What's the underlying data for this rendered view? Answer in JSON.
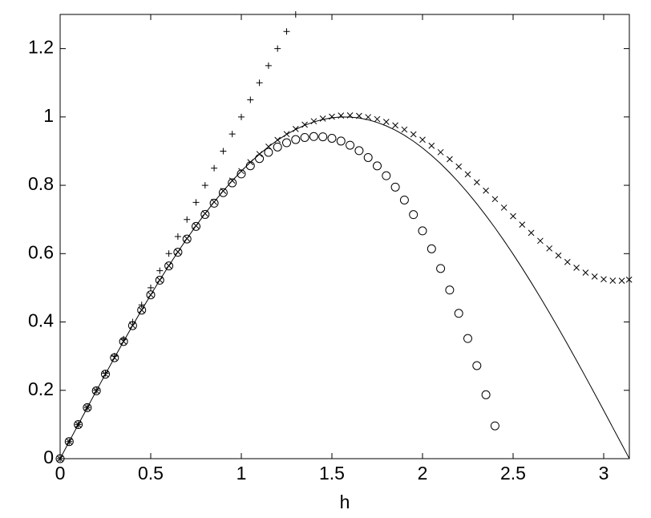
{
  "chart_data": {
    "type": "line",
    "xlabel": "h",
    "x": [
      0,
      0.05,
      0.1,
      0.15,
      0.2,
      0.25,
      0.3,
      0.35,
      0.4,
      0.45,
      0.5,
      0.55,
      0.6,
      0.65,
      0.7,
      0.75,
      0.8,
      0.85,
      0.9,
      0.95,
      1.0,
      1.05,
      1.1,
      1.15,
      1.2,
      1.25,
      1.3,
      1.35,
      1.4,
      1.45,
      1.5,
      1.55,
      1.6,
      1.65,
      1.7,
      1.75,
      1.8,
      1.85,
      1.9,
      1.95,
      2.0,
      2.05,
      2.1,
      2.15,
      2.2,
      2.25,
      2.3,
      2.35,
      2.4,
      2.45,
      2.5,
      2.55,
      2.6,
      2.65,
      2.7,
      2.75,
      2.8,
      2.85,
      2.9,
      2.95,
      3.0,
      3.05,
      3.1,
      3.14
    ],
    "series": [
      {
        "marker": "line",
        "color": "#000000",
        "values": [
          0,
          0.05,
          0.0998,
          0.1494,
          0.1987,
          0.2474,
          0.2955,
          0.3429,
          0.3894,
          0.435,
          0.4794,
          0.5227,
          0.5646,
          0.6052,
          0.6442,
          0.6816,
          0.7174,
          0.7513,
          0.7833,
          0.8134,
          0.8415,
          0.8674,
          0.8912,
          0.9128,
          0.932,
          0.949,
          0.9636,
          0.9757,
          0.9854,
          0.9927,
          0.9975,
          0.9998,
          0.9996,
          0.9969,
          0.9917,
          0.984,
          0.9738,
          0.9613,
          0.9463,
          0.929,
          0.9093,
          0.8874,
          0.8632,
          0.8369,
          0.8085,
          0.7781,
          0.7457,
          0.7115,
          0.6755,
          0.6378,
          0.5985,
          0.5577,
          0.5155,
          0.472,
          0.4274,
          0.3817,
          0.335,
          0.2875,
          0.2392,
          0.1904,
          0.1411,
          0.0911,
          0.0416,
          0.0016
        ]
      },
      {
        "marker": "plus",
        "color": "#000000",
        "values": [
          0,
          0.05,
          0.1,
          0.15,
          0.2,
          0.25,
          0.3,
          0.35,
          0.4,
          0.45,
          0.5,
          0.55,
          0.6,
          0.65,
          0.7,
          0.75,
          0.8,
          0.85,
          0.9,
          0.95,
          1.0,
          1.05,
          1.1,
          1.15,
          1.2,
          1.25,
          1.3,
          null,
          null,
          null,
          null,
          null,
          null,
          null,
          null,
          null,
          null,
          null,
          null,
          null,
          null,
          null,
          null,
          null,
          null,
          null,
          null,
          null,
          null,
          null,
          null,
          null,
          null,
          null,
          null,
          null,
          null,
          null,
          null,
          null,
          null,
          null,
          null,
          null
        ]
      },
      {
        "marker": "circle",
        "color": "#000000",
        "values": [
          0,
          0.05,
          0.0998,
          0.1494,
          0.1987,
          0.2474,
          0.2955,
          0.3429,
          0.3893,
          0.4348,
          0.4792,
          0.5223,
          0.564,
          0.6042,
          0.6428,
          0.6797,
          0.7147,
          0.7476,
          0.7785,
          0.8071,
          0.8333,
          0.8571,
          0.8782,
          0.8965,
          0.912,
          0.9245,
          0.9338,
          0.9399,
          0.9427,
          0.9419,
          0.9375,
          0.9294,
          0.9173,
          0.9013,
          0.8812,
          0.8568,
          0.828,
          0.7947,
          0.7568,
          0.7142,
          0.6667,
          0.6141,
          0.5565,
          0.4936,
          0.4253,
          0.3516,
          0.2722,
          0.187,
          0.096,
          null,
          null,
          null,
          null,
          null,
          null,
          null,
          null,
          null,
          null,
          null,
          null,
          null,
          null,
          null
        ]
      },
      {
        "marker": "cross",
        "color": "#000000",
        "values": [
          0,
          0.05,
          0.0998,
          0.1494,
          0.1987,
          0.2474,
          0.2955,
          0.3429,
          0.3894,
          0.435,
          0.4794,
          0.5227,
          0.5646,
          0.6052,
          0.6442,
          0.6817,
          0.7174,
          0.7513,
          0.7834,
          0.8136,
          0.8417,
          0.8677,
          0.8916,
          0.9133,
          0.9327,
          0.9499,
          0.9647,
          0.9773,
          0.9875,
          0.9953,
          1.0008,
          1.004,
          1.0047,
          1.0032,
          0.9995,
          0.9936,
          0.9855,
          0.9753,
          0.9631,
          0.9492,
          0.9333,
          0.9158,
          0.8968,
          0.8764,
          0.8548,
          0.8321,
          0.8086,
          0.7843,
          0.7596,
          0.7346,
          0.7096,
          0.6849,
          0.6608,
          0.6375,
          0.6152,
          0.5945,
          0.5755,
          0.5587,
          0.5444,
          0.533,
          0.525,
          0.521,
          0.5206,
          0.5238
        ]
      }
    ],
    "xlim": [
      0,
      3.1416
    ],
    "ylim": [
      0,
      1.3
    ],
    "xticks": [
      0,
      0.5,
      1,
      1.5,
      2,
      2.5,
      3
    ],
    "yticks": [
      0,
      0.2,
      0.4,
      0.6,
      0.8,
      1,
      1.2
    ]
  }
}
